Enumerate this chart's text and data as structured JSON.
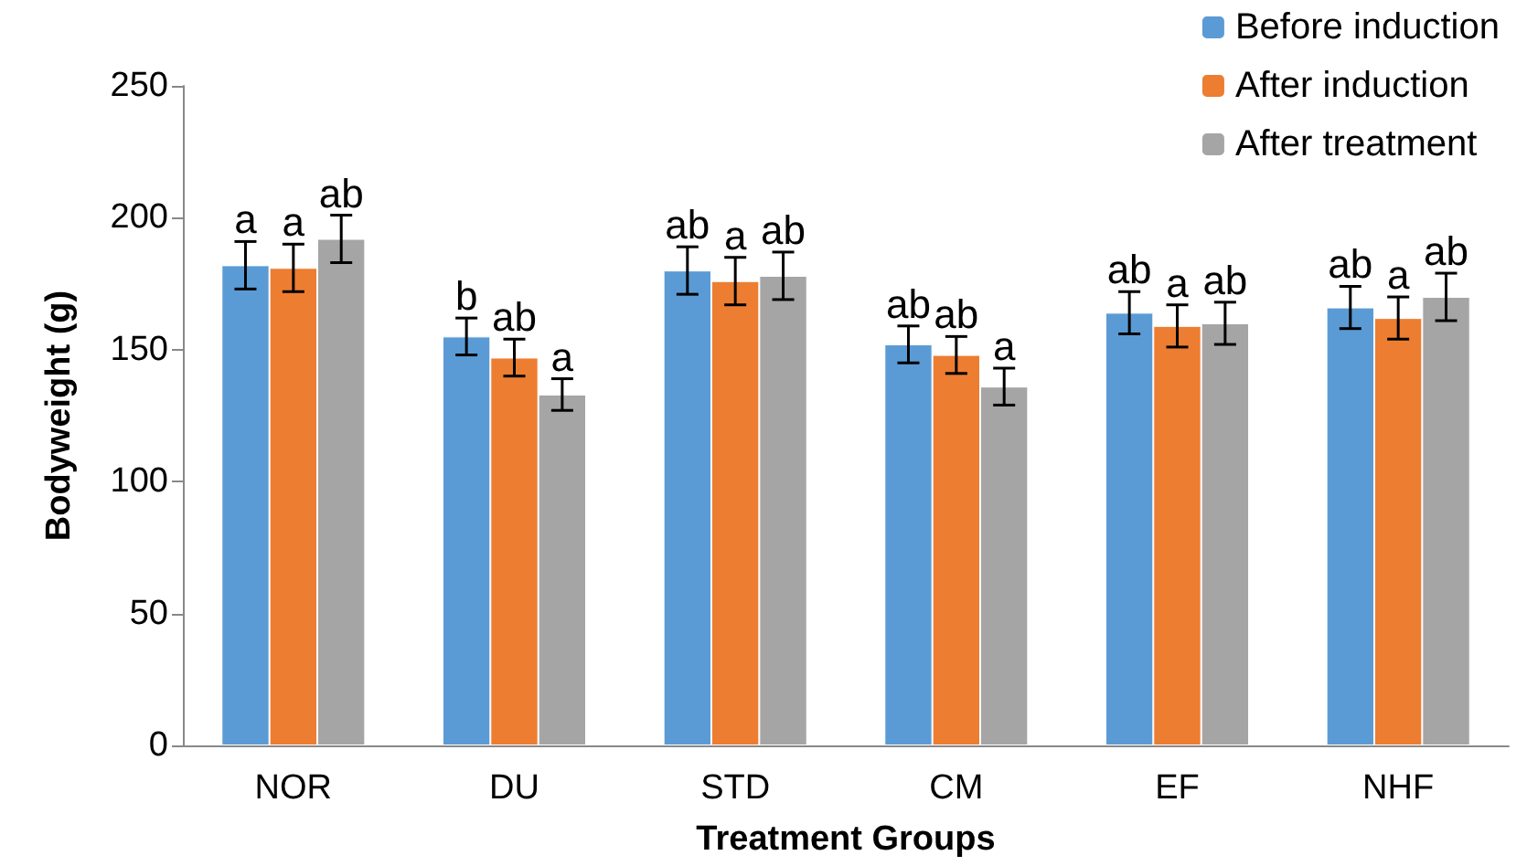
{
  "chart_data": {
    "type": "bar",
    "xlabel": "Treatment Groups",
    "ylabel": "Bodyweight (g)",
    "categories": [
      "NOR",
      "DU",
      "STD",
      "CM",
      "EF",
      "NHF"
    ],
    "series": [
      {
        "name": "Before induction",
        "color": "#5b9bd5",
        "values": [
          182,
          155,
          180,
          152,
          164,
          166
        ],
        "errors": [
          9,
          7,
          9,
          7,
          8,
          8
        ],
        "value_labels": [
          "a",
          "b",
          "ab",
          "ab",
          "ab",
          "ab"
        ]
      },
      {
        "name": "After induction",
        "color": "#ed7d31",
        "values": [
          181,
          147,
          176,
          148,
          159,
          162
        ],
        "errors": [
          9,
          7,
          9,
          7,
          8,
          8
        ],
        "value_labels": [
          "a",
          "ab",
          "a",
          "ab",
          "a",
          "a"
        ]
      },
      {
        "name": "After treatment",
        "color": "#a5a5a5",
        "values": [
          192,
          133,
          178,
          136,
          160,
          170
        ],
        "errors": [
          9,
          6,
          9,
          7,
          8,
          9
        ],
        "value_labels": [
          "ab",
          "a",
          "ab",
          "a",
          "ab",
          "ab"
        ]
      }
    ],
    "ylim": [
      0,
      250
    ],
    "yticks": [
      0,
      50,
      100,
      150,
      200,
      250
    ],
    "grid": false,
    "legend": "top right"
  }
}
